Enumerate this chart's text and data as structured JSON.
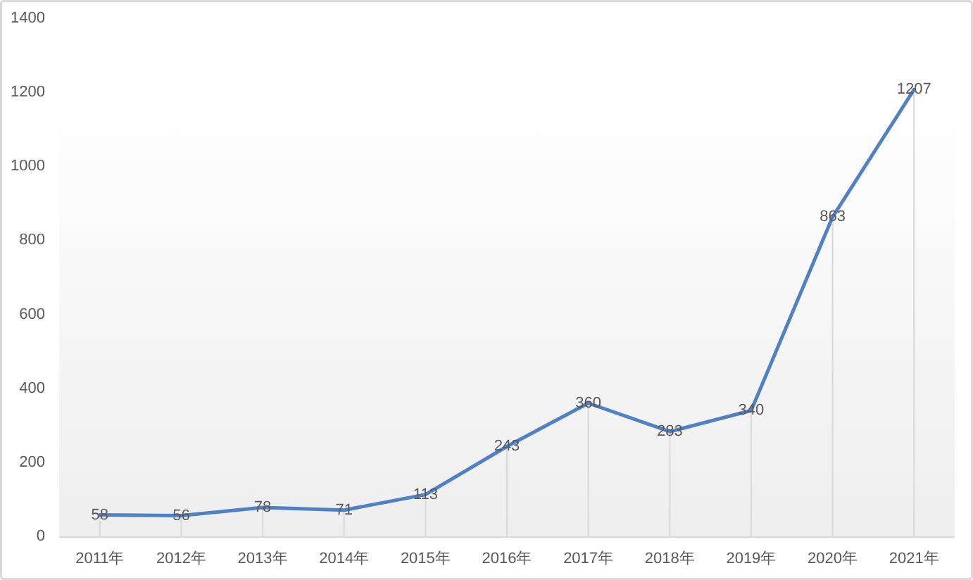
{
  "chart_data": {
    "type": "line",
    "categories": [
      "2011年",
      "2012年",
      "2013年",
      "2014年",
      "2015年",
      "2016年",
      "2017年",
      "2018年",
      "2019年",
      "2020年",
      "2021年"
    ],
    "values": [
      58,
      56,
      78,
      71,
      113,
      243,
      360,
      283,
      340,
      863,
      1207
    ],
    "color": "#4f81c4",
    "ylim": [
      0,
      1400
    ],
    "yticks": [
      0,
      200,
      400,
      600,
      800,
      1000,
      1200,
      1400
    ],
    "line_style": "solid",
    "data_labels": true
  }
}
